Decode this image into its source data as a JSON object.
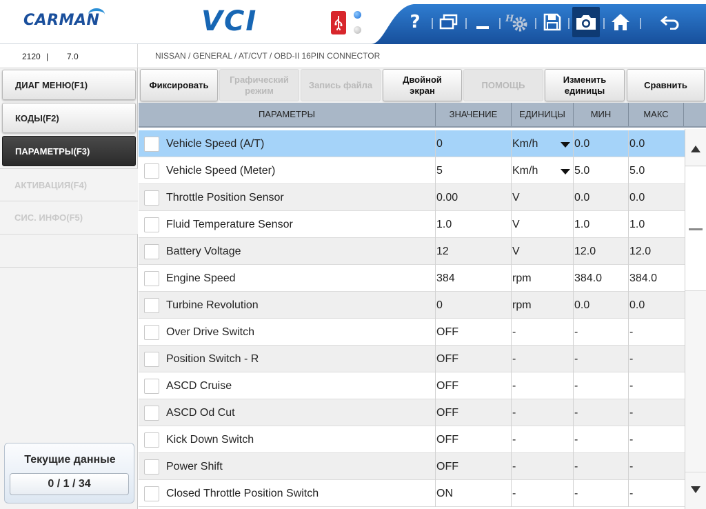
{
  "header": {
    "logo": "CARMAN",
    "product": "VCI",
    "toolbar_icons": [
      "help-icon",
      "window-icon",
      "minimize-icon",
      "settings-icon",
      "save-icon",
      "camera-icon",
      "home-icon",
      "back-icon"
    ],
    "help_glyph": "?",
    "accent_color": "#1f5fb0"
  },
  "infobar": {
    "code": "2120",
    "separator": "|",
    "version": "7.0",
    "path": "NISSAN / GENERAL / AT/CVT / OBD-II 16PIN CONNECTOR"
  },
  "sidebar": {
    "items": [
      {
        "label": "ДИАГ МЕНЮ(F1)",
        "state": "normal"
      },
      {
        "label": "КОДЫ(F2)",
        "state": "normal"
      },
      {
        "label": "ПАРАМЕТРЫ(F3)",
        "state": "active"
      },
      {
        "label": "АКТИВАЦИЯ(F4)",
        "state": "disabled"
      },
      {
        "label": "СИС. ИНФО(F5)",
        "state": "disabled"
      }
    ],
    "counter": {
      "title": "Текущие данные",
      "value": "0 / 1 / 34"
    }
  },
  "functions": [
    {
      "label": "Фиксировать",
      "enabled": true
    },
    {
      "label": "Графический режим",
      "enabled": false
    },
    {
      "label": "Запись файла",
      "enabled": false
    },
    {
      "label": "Двойной экран",
      "enabled": true
    },
    {
      "label": "ПОМОЩЬ",
      "enabled": false
    },
    {
      "label": "Изменить единицы",
      "enabled": true
    },
    {
      "label": "Сравнить",
      "enabled": true
    }
  ],
  "table": {
    "columns": [
      "ПАРАМЕТРЫ",
      "ЗНАЧЕНИЕ",
      "ЕДИНИЦЫ",
      "МИН",
      "МАКС"
    ],
    "rows": [
      {
        "name": "Vehicle Speed (A/T)",
        "value": "0",
        "unit": "Km/h",
        "min": "0.0",
        "max": "0.0",
        "dropdown": true,
        "selected": true
      },
      {
        "name": "Vehicle Speed (Meter)",
        "value": "5",
        "unit": "Km/h",
        "min": "5.0",
        "max": "5.0",
        "dropdown": true,
        "selected": false
      },
      {
        "name": "Throttle Position Sensor",
        "value": "0.00",
        "unit": "V",
        "min": "0.0",
        "max": "0.0",
        "dropdown": false,
        "selected": false
      },
      {
        "name": "Fluid Temperature Sensor",
        "value": "1.0",
        "unit": "V",
        "min": "1.0",
        "max": "1.0",
        "dropdown": false,
        "selected": false
      },
      {
        "name": "Battery Voltage",
        "value": "12",
        "unit": "V",
        "min": "12.0",
        "max": "12.0",
        "dropdown": false,
        "selected": false
      },
      {
        "name": "Engine Speed",
        "value": "384",
        "unit": "rpm",
        "min": "384.0",
        "max": "384.0",
        "dropdown": false,
        "selected": false
      },
      {
        "name": "Turbine Revolution",
        "value": "0",
        "unit": "rpm",
        "min": "0.0",
        "max": "0.0",
        "dropdown": false,
        "selected": false
      },
      {
        "name": "Over Drive Switch",
        "value": "OFF",
        "unit": "-",
        "min": "-",
        "max": "-",
        "dropdown": false,
        "selected": false
      },
      {
        "name": "Position Switch - R",
        "value": "OFF",
        "unit": "-",
        "min": "-",
        "max": "-",
        "dropdown": false,
        "selected": false
      },
      {
        "name": "ASCD Cruise",
        "value": "OFF",
        "unit": "-",
        "min": "-",
        "max": "-",
        "dropdown": false,
        "selected": false
      },
      {
        "name": "ASCD Od Cut",
        "value": "OFF",
        "unit": "-",
        "min": "-",
        "max": "-",
        "dropdown": false,
        "selected": false
      },
      {
        "name": "Kick Down Switch",
        "value": "OFF",
        "unit": "-",
        "min": "-",
        "max": "-",
        "dropdown": false,
        "selected": false
      },
      {
        "name": "Power Shift",
        "value": "OFF",
        "unit": "-",
        "min": "-",
        "max": "-",
        "dropdown": false,
        "selected": false
      },
      {
        "name": "Closed Throttle Position Switch",
        "value": "ON",
        "unit": "-",
        "min": "-",
        "max": "-",
        "dropdown": false,
        "selected": false
      }
    ]
  },
  "scrollbar": {
    "up_icon": "scroll-up-icon",
    "down_icon": "scroll-down-icon"
  }
}
